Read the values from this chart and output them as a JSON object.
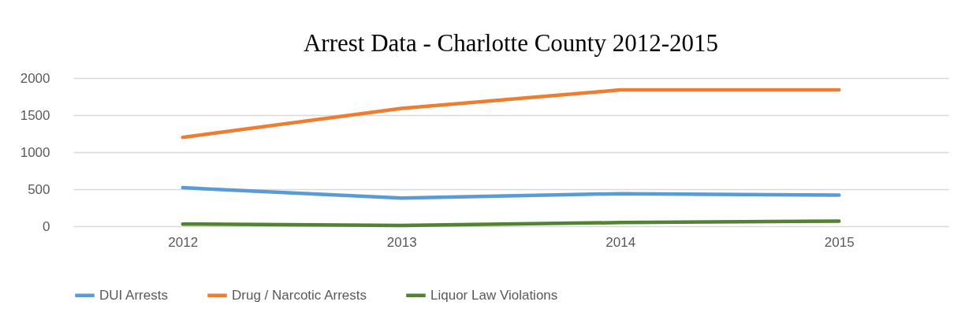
{
  "chart_data": {
    "type": "line",
    "title": "Arrest Data - Charlotte County 2012-2015",
    "categories": [
      "2012",
      "2013",
      "2014",
      "2015"
    ],
    "series": [
      {
        "name": "DUI Arrests",
        "color": "#5b9bd5",
        "values": [
          520,
          380,
          440,
          420
        ]
      },
      {
        "name": "Drug / Narcotic Arrests",
        "color": "#ed7d31",
        "values": [
          1200,
          1590,
          1840,
          1840
        ]
      },
      {
        "name": "Liquor Law Violations",
        "color": "#548235",
        "values": [
          30,
          10,
          50,
          70
        ]
      }
    ],
    "ylim": [
      0,
      2000
    ],
    "yticks": [
      0,
      500,
      1000,
      1500,
      2000
    ],
    "grid": "y",
    "legend": "bottom",
    "marker": "none",
    "line_style": "solid"
  }
}
